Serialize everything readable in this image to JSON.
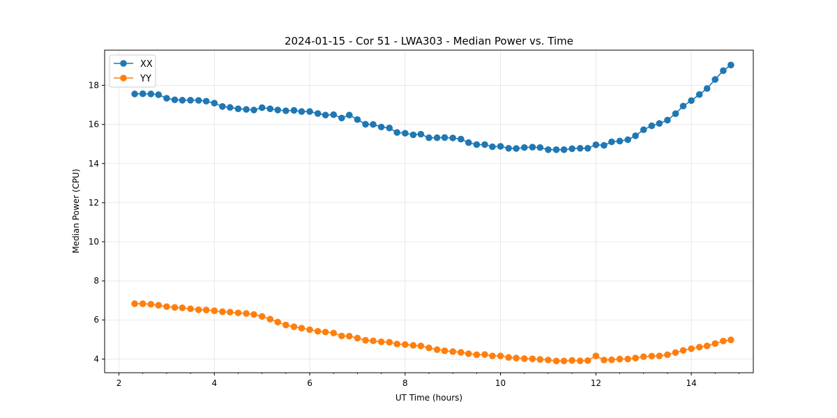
{
  "chart_data": {
    "type": "line",
    "title": "2024-01-15 - Cor 51 - LWA303 - Median Power vs. Time",
    "xlabel": "UT Time (hours)",
    "ylabel": "Median Power (CPU)",
    "xlim": [
      1.7,
      15.3
    ],
    "ylim": [
      3.3,
      19.8
    ],
    "xticks": [
      2,
      4,
      6,
      8,
      10,
      12,
      14
    ],
    "yticks": [
      4,
      6,
      8,
      10,
      12,
      14,
      16,
      18
    ],
    "grid": true,
    "legend_position": "upper-left",
    "x": [
      2.33,
      2.5,
      2.67,
      2.83,
      3.0,
      3.17,
      3.33,
      3.5,
      3.67,
      3.83,
      4.0,
      4.17,
      4.33,
      4.5,
      4.67,
      4.83,
      5.0,
      5.17,
      5.33,
      5.5,
      5.67,
      5.83,
      6.0,
      6.17,
      6.33,
      6.5,
      6.67,
      6.83,
      7.0,
      7.17,
      7.33,
      7.5,
      7.67,
      7.83,
      8.0,
      8.17,
      8.33,
      8.5,
      8.67,
      8.83,
      9.0,
      9.17,
      9.33,
      9.5,
      9.67,
      9.83,
      10.0,
      10.17,
      10.33,
      10.5,
      10.67,
      10.83,
      11.0,
      11.17,
      11.33,
      11.5,
      11.67,
      11.83,
      12.0,
      12.17,
      12.33,
      12.5,
      12.67,
      12.83,
      13.0,
      13.17,
      13.33,
      13.5,
      13.67,
      13.83,
      14.0,
      14.17,
      14.33,
      14.5,
      14.67,
      14.83
    ],
    "series": [
      {
        "name": "XX",
        "color": "#1f77b4",
        "values": [
          17.56,
          17.57,
          17.56,
          17.52,
          17.34,
          17.26,
          17.24,
          17.24,
          17.23,
          17.19,
          17.09,
          16.92,
          16.87,
          16.8,
          16.77,
          16.74,
          16.86,
          16.8,
          16.74,
          16.7,
          16.72,
          16.66,
          16.66,
          16.56,
          16.48,
          16.5,
          16.33,
          16.48,
          16.25,
          16.01,
          16.0,
          15.87,
          15.82,
          15.59,
          15.55,
          15.47,
          15.5,
          15.32,
          15.32,
          15.33,
          15.31,
          15.25,
          15.07,
          14.97,
          14.97,
          14.86,
          14.88,
          14.78,
          14.77,
          14.82,
          14.84,
          14.82,
          14.71,
          14.71,
          14.71,
          14.76,
          14.78,
          14.78,
          14.96,
          14.93,
          15.11,
          15.15,
          15.22,
          15.42,
          15.73,
          15.93,
          16.05,
          16.22,
          16.55,
          16.94,
          17.22,
          17.53,
          17.84,
          18.3,
          18.75,
          19.04
        ]
      },
      {
        "name": "YY",
        "color": "#ff7f0e",
        "values": [
          6.83,
          6.83,
          6.8,
          6.75,
          6.68,
          6.64,
          6.62,
          6.57,
          6.52,
          6.51,
          6.47,
          6.42,
          6.4,
          6.36,
          6.33,
          6.28,
          6.18,
          6.04,
          5.89,
          5.74,
          5.65,
          5.58,
          5.5,
          5.42,
          5.38,
          5.33,
          5.18,
          5.17,
          5.07,
          4.96,
          4.93,
          4.88,
          4.86,
          4.77,
          4.74,
          4.7,
          4.67,
          4.57,
          4.48,
          4.42,
          4.38,
          4.34,
          4.27,
          4.22,
          4.23,
          4.16,
          4.16,
          4.08,
          4.05,
          4.02,
          4.01,
          3.98,
          3.95,
          3.9,
          3.9,
          3.93,
          3.91,
          3.92,
          4.16,
          3.95,
          3.96,
          4.0,
          4.0,
          4.05,
          4.12,
          4.15,
          4.16,
          4.22,
          4.33,
          4.44,
          4.53,
          4.61,
          4.67,
          4.79,
          4.92,
          4.98
        ]
      }
    ]
  }
}
